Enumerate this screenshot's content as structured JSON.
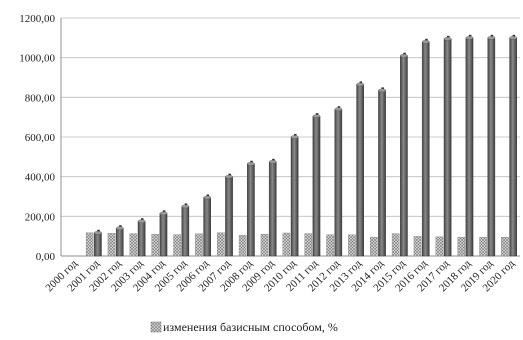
{
  "chart_data": {
    "type": "bar",
    "categories": [
      "2000 год",
      "2001 год",
      "2002 год",
      "2003 год",
      "2004 год",
      "2005 год",
      "2006 год",
      "2007 год",
      "2008 год",
      "2009 год",
      "2010 год",
      "2011 год",
      "2012 год",
      "2013 год",
      "2014 год",
      "2015 год",
      "2016 год",
      "2017 год",
      "2018 год",
      "2019 год",
      "2020 год"
    ],
    "series": [
      {
        "name": "изменения базисным способом, %",
        "color": "#b3b3b3",
        "pattern": "crosshatch",
        "values": [
          0,
          117,
          115,
          113,
          110,
          108,
          112,
          117,
          105,
          110,
          116,
          113,
          107,
          107,
          95,
          113,
          99,
          97,
          95,
          95,
          95
        ]
      },
      {
        "name": "",
        "color": "#555555",
        "values": [
          0,
          117,
          140,
          175,
          215,
          250,
          295,
          400,
          465,
          475,
          600,
          705,
          740,
          865,
          835,
          1010,
          1080,
          1095,
          1100,
          1100,
          1100
        ]
      }
    ],
    "y_ticks": [
      "0,00",
      "200,00",
      "400,00",
      "600,00",
      "800,00",
      "1000,00",
      "1200,00"
    ],
    "ylim": [
      0,
      1200
    ],
    "grid": true,
    "legend_position": "bottom",
    "title": "",
    "xlabel": "",
    "ylabel": ""
  }
}
